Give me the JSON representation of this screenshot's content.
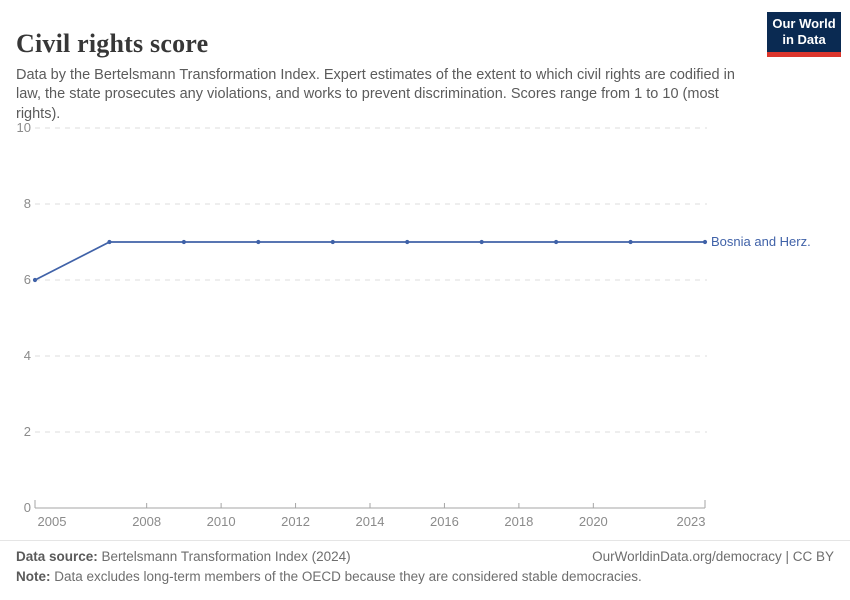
{
  "header": {
    "title": "Civil rights score",
    "subtitle": "Data by the Bertelsmann Transformation Index. Expert estimates of the extent to which civil rights are codified in law, the state prosecutes any violations, and works to prevent discrimination. Scores range from 1 to 10 (most rights).",
    "logo": {
      "line1": "Our World",
      "line2": "in Data"
    }
  },
  "chart_data": {
    "type": "line",
    "title": "Civil rights score",
    "x": [
      2005,
      2007,
      2009,
      2011,
      2013,
      2015,
      2017,
      2019,
      2021,
      2023
    ],
    "series": [
      {
        "name": "Bosnia and Herz.",
        "values": [
          6,
          7,
          7,
          7,
          7,
          7,
          7,
          7,
          7,
          7
        ],
        "color": "#4062a8"
      }
    ],
    "xlabel": "",
    "ylabel": "",
    "xlim": [
      2005,
      2023
    ],
    "ylim": [
      0,
      10
    ],
    "xticks": [
      2005,
      2008,
      2010,
      2012,
      2014,
      2016,
      2018,
      2020,
      2023
    ],
    "yticks": [
      0,
      2,
      4,
      6,
      8,
      10
    ],
    "grid": "horizontal-dashed",
    "legend_position": "end-of-line-label",
    "marker": "circle"
  },
  "footer": {
    "source_label": "Data source:",
    "source_text": " Bertelsmann Transformation Index (2024)",
    "attribution": "OurWorldinData.org/democracy | CC BY",
    "note_label": "Note:",
    "note_text": " Data excludes long-term members of the OECD because they are considered stable democracies."
  },
  "colors": {
    "series_blue": "#4062a8",
    "grid": "#dcdcdc",
    "axis": "#a5a5a5",
    "tick_text": "#8b8b8b",
    "logo_navy": "#0a2a52",
    "logo_red": "#dc352c"
  }
}
